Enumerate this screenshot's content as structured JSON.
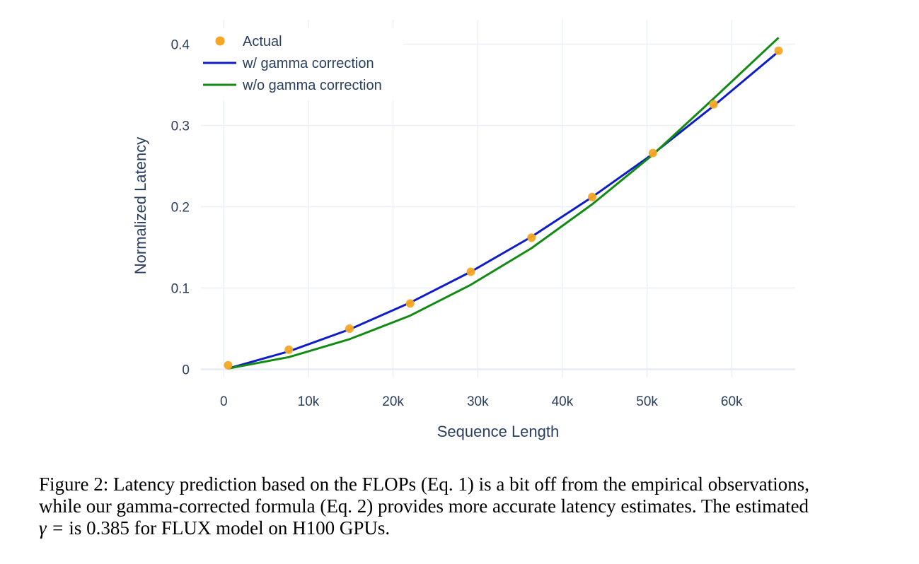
{
  "chart_data": {
    "type": "line",
    "title": "",
    "xlabel": "Sequence Length",
    "ylabel": "Normalized Latency",
    "xlim": [
      -2700,
      67500
    ],
    "ylim": [
      -0.01,
      0.43
    ],
    "x_ticks": [
      0,
      10000,
      20000,
      30000,
      40000,
      50000,
      60000
    ],
    "x_tick_labels": [
      "0",
      "10k",
      "20k",
      "30k",
      "40k",
      "50k",
      "60k"
    ],
    "y_ticks": [
      0,
      0.1,
      0.2,
      0.3,
      0.4
    ],
    "y_tick_labels": [
      "0",
      "0.1",
      "0.2",
      "0.3",
      "0.4"
    ],
    "grid": true,
    "legend_position": "top-left",
    "series": [
      {
        "name": "Actual",
        "kind": "markers",
        "color": "#f5a623",
        "x": [
          512,
          7680,
          14848,
          22016,
          29184,
          36352,
          43520,
          50688,
          57856,
          65536
        ],
        "y": [
          0.005,
          0.024,
          0.05,
          0.081,
          0.12,
          0.162,
          0.212,
          0.266,
          0.326,
          0.392
        ]
      },
      {
        "name": "w/ gamma correction",
        "kind": "line",
        "color": "#0f1dc8",
        "x": [
          512,
          7680,
          14848,
          22016,
          29184,
          36352,
          43520,
          50688,
          57856,
          65536
        ],
        "y": [
          0.001,
          0.022,
          0.049,
          0.082,
          0.12,
          0.163,
          0.212,
          0.265,
          0.324,
          0.391
        ]
      },
      {
        "name": "w/o gamma correction",
        "kind": "line",
        "color": "#138a13",
        "x": [
          512,
          7680,
          14848,
          22016,
          29184,
          36352,
          43520,
          50688,
          57856,
          65536
        ],
        "y": [
          0.001,
          0.015,
          0.037,
          0.066,
          0.104,
          0.149,
          0.203,
          0.264,
          0.333,
          0.408
        ]
      }
    ]
  },
  "caption": {
    "line1": "Figure 2: Latency prediction based on the FLOPs (Eq. 1) is a bit off from the empirical observations,",
    "line2": "while our gamma-corrected formula (Eq. 2) provides more accurate latency estimates. The estimated",
    "line3_math": "γ =",
    "line3_rest": " is 0.385 for FLUX model on H100 GPUs."
  }
}
